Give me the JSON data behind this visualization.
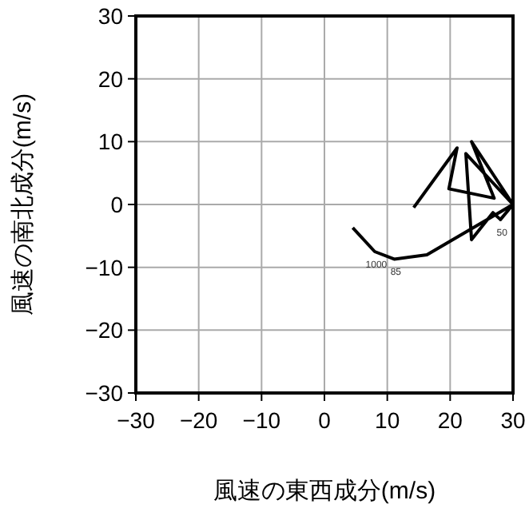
{
  "chart_data": {
    "type": "line",
    "xlabel": "風速の東西成分(m/s)",
    "ylabel": "風速の南北成分(m/s)",
    "xlim": [
      -30,
      30
    ],
    "ylim": [
      -30,
      30
    ],
    "xticks": [
      -30,
      -20,
      -10,
      0,
      10,
      20,
      30
    ],
    "yticks": [
      -30,
      -20,
      -10,
      0,
      10,
      20,
      30
    ],
    "grid": true,
    "series": [
      {
        "color": "#000000",
        "x": [
          4.5,
          8.0,
          11.1,
          16.3,
          30.0,
          28.0,
          26.8,
          23.4,
          22.5,
          30.0,
          23.4,
          27.0,
          19.8,
          21.1,
          14.2
        ],
        "values": [
          -3.7,
          -7.5,
          -8.7,
          -8.0,
          0,
          -2.4,
          -1.3,
          -5.6,
          8.1,
          0,
          10.0,
          1.0,
          2.5,
          9.0,
          -0.5
        ]
      }
    ],
    "annotations": [
      {
        "text": "1000",
        "x": 8.0,
        "y": -7.5
      },
      {
        "text": "85",
        "x": 11.1,
        "y": -8.7
      },
      {
        "text": "50",
        "x": 28.0,
        "y": -2.4
      }
    ]
  }
}
